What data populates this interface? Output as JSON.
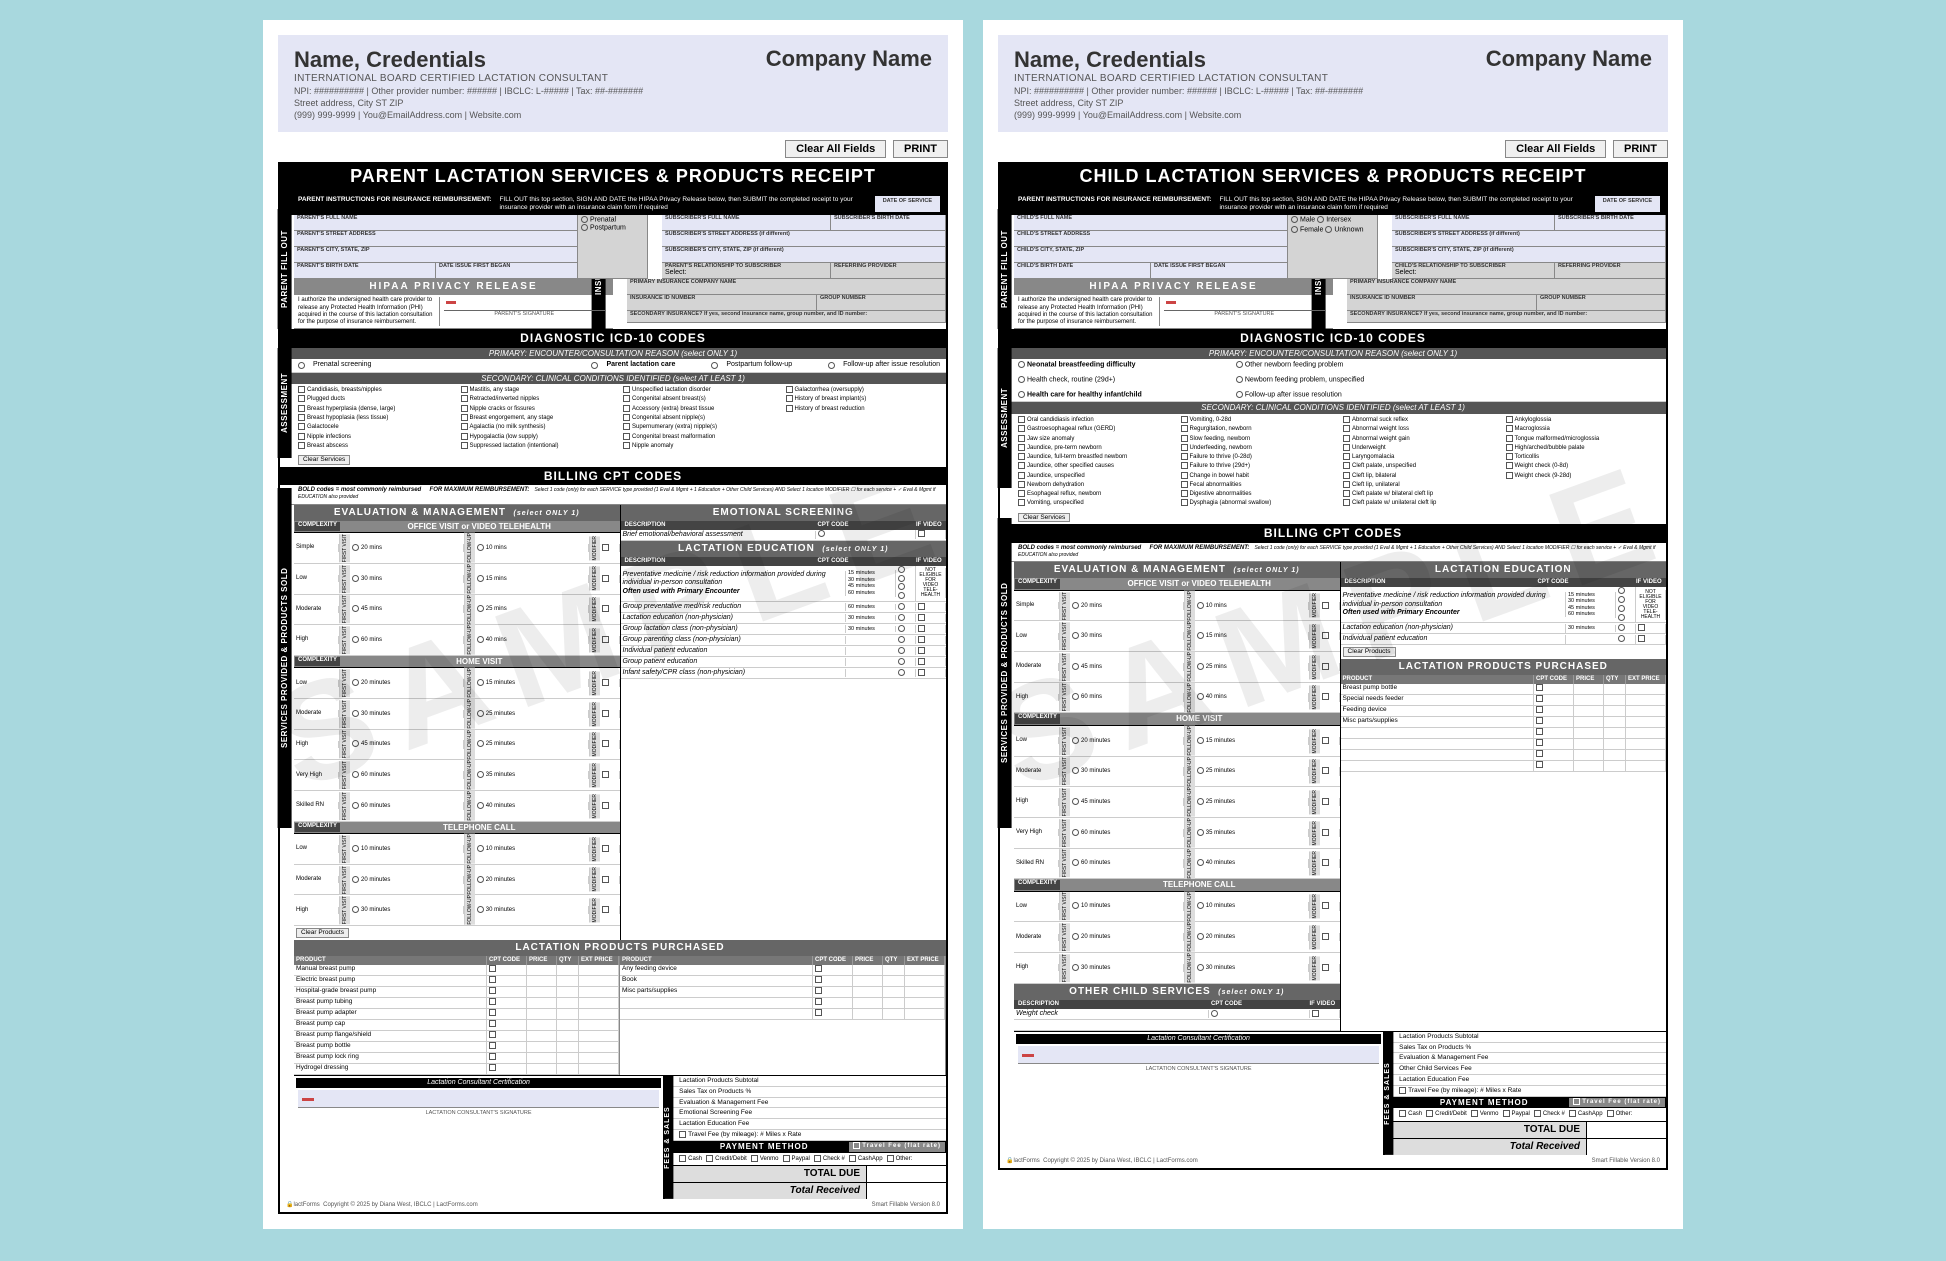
{
  "header": {
    "name": "Name, Credentials",
    "cred_line": "INTERNATIONAL BOARD CERTIFIED LACTATION CONSULTANT",
    "info1": "NPI: ########## | Other provider number: ###### | IBCLC: L-##### | Tax: ##-#######",
    "info2": "Street address, City ST ZIP",
    "info3": "(999) 999-9999 | You@EmailAddress.com | Website.com",
    "company": "Company Name"
  },
  "buttons": {
    "clear": "Clear All Fields",
    "print": "PRINT"
  },
  "forms": {
    "parent": {
      "title": "PARENT LACTATION SERVICES & PRODUCTS RECEIPT",
      "fill_labels": {
        "l1": "PARENT'S FULL NAME",
        "l2": "PARENT'S STREET ADDRESS",
        "l3": "PARENT'S CITY, STATE, ZIP",
        "l4": "PARENT'S BIRTH DATE",
        "l5": "DATE ISSUE FIRST BEGAN",
        "sex": [
          "Prenatal",
          "Postpartum"
        ],
        "r1": "SUBSCRIBER'S FULL NAME",
        "r2": "SUBSCRIBER'S BIRTH DATE",
        "r3": "SUBSCRIBER'S STREET ADDRESS (if different)",
        "r4": "SUBSCRIBER'S CITY, STATE, ZIP (if different)",
        "r5": "PARENT'S RELATIONSHIP TO SUBSCRIBER",
        "r6": "REFERRING PROVIDER",
        "r7": "PRIMARY INSURANCE COMPANY NAME",
        "r8": "INSURANCE ID NUMBER",
        "r9": "GROUP NUMBER"
      },
      "icd_primary": [
        "Prenatal screening",
        "Parent lactation care",
        "Postpartum follow-up",
        "Follow-up after issue resolution"
      ],
      "icd_secondary": {
        "c1": [
          "Candidiasis, breasts/nipples",
          "Plugged ducts",
          "Breast hyperplasia (dense, large)",
          "Breast hypoplasia (less tissue)",
          "Galactocele",
          "Nipple infections",
          "Breast abscess"
        ],
        "c2": [
          "Mastitis, any stage",
          "Retracted/inverted nipples",
          "Nipple cracks or fissures",
          "Breast engorgement, any stage",
          "Agalactia (no milk synthesis)",
          "Hypogalactia (low supply)",
          "Suppressed lactation (intentional)"
        ],
        "c3": [
          "Unspecified lactation disorder",
          "Congenital absent breast(s)",
          "Accessory (extra) breast tissue",
          "Congenital absent nipple(s)",
          "Supernumerary (extra) nipple(s)",
          "Congenital breast malformation",
          "Nipple anomaly"
        ],
        "c4": [
          "Galactorrhea (oversupply)",
          "History of breast implant(s)",
          "History of breast reduction"
        ]
      },
      "em": {
        "office": {
          "hdr": "OFFICE VISIT or VIDEO TELEHEALTH",
          "rows": [
            [
              "Simple",
              "20 mins",
              "10 mins"
            ],
            [
              "Low",
              "30 mins",
              "15 mins"
            ],
            [
              "Moderate",
              "45 mins",
              "25 mins"
            ],
            [
              "High",
              "60 mins",
              "40 mins"
            ]
          ]
        },
        "home": {
          "hdr": "HOME VISIT",
          "rows": [
            [
              "Low",
              "20 minutes",
              "15 minutes"
            ],
            [
              "Moderate",
              "30 minutes",
              "25 minutes"
            ],
            [
              "High",
              "45 minutes",
              "25 minutes"
            ],
            [
              "Very High",
              "60 minutes",
              "35 minutes"
            ],
            [
              "Skilled RN",
              "60 minutes",
              "40 minutes"
            ]
          ]
        },
        "tele": {
          "hdr": "TELEPHONE CALL",
          "rows": [
            [
              "Low",
              "10 minutes",
              "10 minutes"
            ],
            [
              "Moderate",
              "20 minutes",
              "20 minutes"
            ],
            [
              "High",
              "30 minutes",
              "30 minutes"
            ]
          ]
        }
      },
      "emo": {
        "hdr": "EMOTIONAL SCREENING",
        "desc": "Brief emotional/behavioral assessment"
      },
      "edu": {
        "hdr": "LACTATION EDUCATION",
        "note": "(select ONLY 1)",
        "rows": [
          {
            "d": "Preventative medicine / risk reduction information provided during individual in-person consultation",
            "t": [
              "15 minutes",
              "30 minutes",
              "45 minutes",
              "60 minutes"
            ],
            "sub": "Often used with Primary Encounter"
          },
          {
            "d": "Group preventative med/risk reduction",
            "t": [
              "60 minutes"
            ]
          },
          {
            "d": "Lactation education (non-physician)",
            "t": [
              "30 minutes"
            ]
          },
          {
            "d": "Group lactation class (non-physician)",
            "t": [
              "30 minutes"
            ]
          },
          {
            "d": "Group parenting class (non-physician)"
          },
          {
            "d": "Individual patient education"
          },
          {
            "d": "Group patient education"
          },
          {
            "d": "Infant safety/CPR class (non-physician)"
          }
        ]
      },
      "products": {
        "left": [
          "Manual breast pump",
          "Electric breast pump",
          "Hospital-grade breast pump",
          "Breast pump tubing",
          "Breast pump adapter",
          "Breast pump cap",
          "Breast pump flange/shield",
          "Breast pump bottle",
          "Breast pump lock ring",
          "Hydrogel dressing"
        ],
        "right": [
          "Any feeding device",
          "Book",
          "Misc parts/supplies"
        ]
      },
      "fees": [
        "Lactation Products Subtotal",
        "Sales Tax on Products        %",
        "Evaluation & Management Fee",
        "Emotional Screening Fee",
        "Lactation Education Fee"
      ]
    },
    "child": {
      "title": "CHILD LACTATION SERVICES & PRODUCTS RECEIPT",
      "fill_labels": {
        "l1": "CHILD'S FULL NAME",
        "l2": "CHILD'S STREET ADDRESS",
        "l3": "CHILD'S CITY, STATE, ZIP",
        "l4": "CHILD'S BIRTH DATE",
        "l5": "DATE ISSUE FIRST BEGAN",
        "sex": [
          "Male",
          "Female",
          "Intersex",
          "Unknown"
        ],
        "r1": "SUBSCRIBER'S FULL NAME",
        "r2": "SUBSCRIBER'S BIRTH DATE",
        "r3": "SUBSCRIBER'S STREET ADDRESS (if different)",
        "r4": "SUBSCRIBER'S CITY, STATE, ZIP (if different)",
        "r5": "CHILD'S RELATIONSHIP TO SUBSCRIBER",
        "r6": "REFERRING PROVIDER",
        "r7": "PRIMARY INSURANCE COMPANY NAME",
        "r8": "INSURANCE ID NUMBER",
        "r9": "GROUP NUMBER"
      },
      "icd_primary": [
        "Neonatal breastfeeding difficulty",
        "Other newborn feeding problem",
        "Health check, routine (29d+)",
        "Newborn feeding problem, unspecified",
        "Health care for healthy infant/child",
        "Follow-up after issue resolution"
      ],
      "icd_secondary": {
        "c1": [
          "Oral candidiasis infection",
          "Gastroesophageal reflux (GERD)",
          "Jaw size anomaly",
          "Jaundice, pre-term newborn",
          "Jaundice, full-term breastfed newborn",
          "Jaundice, other specified causes",
          "Jaundice, unspecified",
          "Newborn dehydration",
          "Esophageal reflux, newborn",
          "Vomiting, unspecified"
        ],
        "c2": [
          "Vomiting, 0-28d",
          "Regurgitation, newborn",
          "Slow feeding, newborn",
          "Underfeeding, newborn",
          "Failure to thrive (0-28d)",
          "Failure to thrive (29d+)",
          "Change in bowel habit",
          "Fecal abnormalities",
          "Digestive abnormalities",
          "Dysphagia (abnormal swallow)"
        ],
        "c3": [
          "Abnormal suck reflex",
          "Abnormal weight loss",
          "Abnormal weight gain",
          "Underweight",
          "Laryngomalacia",
          "Cleft palate, unspecified",
          "Cleft lip, bilateral",
          "Cleft lip, unilateral",
          "Cleft palate w/ bilateral cleft lip",
          "Cleft palate w/ unilateral cleft lip"
        ],
        "c4": [
          "Ankyloglossia",
          "Macroglossia",
          "Tongue malformed/microglossia",
          "High/arched/bubble palate",
          "Torticollis",
          "Weight check (0-8d)",
          "Weight check (9-28d)"
        ]
      },
      "edu": {
        "rows": [
          {
            "d": "Preventative medicine / risk reduction information provided during individual in-person consultation",
            "t": [
              "15 minutes",
              "30 minutes",
              "45 minutes",
              "60 minutes"
            ],
            "sub": "Often used with Primary Encounter"
          },
          {
            "d": "Lactation education (non-physician)",
            "t": [
              "30 minutes"
            ]
          },
          {
            "d": "Individual patient education"
          }
        ]
      },
      "products": [
        "Breast pump bottle",
        "Special needs feeder",
        "Feeding device",
        "Misc parts/supplies"
      ],
      "other": {
        "hdr": "OTHER CHILD SERVICES",
        "note": "(select ONLY 1)",
        "rows": [
          "Weight check"
        ]
      },
      "fees": [
        "Lactation Products Subtotal",
        "Sales Tax on Products        %",
        "Evaluation & Management Fee",
        "Other Child Services Fee",
        "Lactation Education Fee"
      ]
    }
  },
  "common": {
    "instr_lbl": "PARENT INSTRUCTIONS FOR INSURANCE REIMBURSEMENT:",
    "instr_txt": "FILL OUT this top section, SIGN AND DATE the HIPAA Privacy Release below, then SUBMIT the completed receipt to your insurance provider with an insurance claim form if required",
    "date_of_service": "DATE OF SERVICE",
    "hipaa": "HIPAA PRIVACY RELEASE",
    "hipaa_text": "I authorize the undersigned health care provider to release any Protected Health Information (PHI) acquired in the course of this lactation consultation for the purpose of insurance reimbursement.",
    "parent_sig": "PARENT'S SIGNATURE",
    "sec_ins": "SECONDARY INSURANCE?  If yes, second insurance name, group number, and ID number:",
    "icd_hdr": "DIAGNOSTIC ICD-10 CODES",
    "icd_sub1": "PRIMARY:  ENCOUNTER/CONSULTATION REASON  (select ONLY 1)",
    "icd_sub2": "SECONDARY:  CLINICAL CONDITIONS IDENTIFIED  (select AT LEAST 1)",
    "cpt_hdr": "BILLING CPT CODES",
    "bold_note": "BOLD codes = most commonly reimbursed",
    "max_note": "FOR MAXIMUM REIMBURSEMENT:",
    "max_note2": "Select 1 code (only) for each SERVICE type provided (1 Eval & Mgmt + 1 Education + Other Child Services) AND Select 1 location MODIFIER ☐ for each service + ✓ Eval & Mgmt if EDUCATION also provided",
    "em_hdr": "EVALUATION & MANAGEMENT",
    "em_note": "(select ONLY 1)",
    "edu_hdr": "LACTATION EDUCATION",
    "prod_hdr": "LACTATION PRODUCTS PURCHASED",
    "prod_cols": [
      "PRODUCT",
      "CPT CODE",
      "PRICE",
      "QTY",
      "EXT PRICE"
    ],
    "cert_hdr": "Lactation Consultant Certification",
    "cert_sig": "LACTATION CONSULTANT'S SIGNATURE",
    "pay_hdr": "PAYMENT METHOD",
    "pay_opts": [
      "Cash",
      "Credit/Debit",
      "Venmo",
      "Paypal",
      "Check #",
      "CashApp",
      "Other:"
    ],
    "travel": "Travel Fee (by mileage):  # Miles           x Rate",
    "travel_flat": "Travel Fee (flat rate)",
    "total_due": "TOTAL DUE",
    "total_rec": "Total Received",
    "clear_svc": "Clear Services",
    "clear_prod": "Clear Products",
    "select": "Select:",
    "complexity": "COMPLEXITY",
    "desc": "DESCRIPTION",
    "cpt": "CPT CODE",
    "ifvideo": "IF VIDEO",
    "not_elig": "NOT ELIGIBLE FOR VIDEO TELE-HEALTH",
    "footer_l": "Copyright © 2025 by Diana West, IBCLC | LactForms.com",
    "footer_r": "Smart Fillable Version 8.0",
    "tabs": {
      "fill": "PARENT FILL OUT",
      "assess": "ASSESSMENT",
      "ins": "INSURANCE",
      "svc": "SERVICES PROVIDED & PRODUCTS SOLD",
      "fees": "FEES & SALES"
    }
  }
}
